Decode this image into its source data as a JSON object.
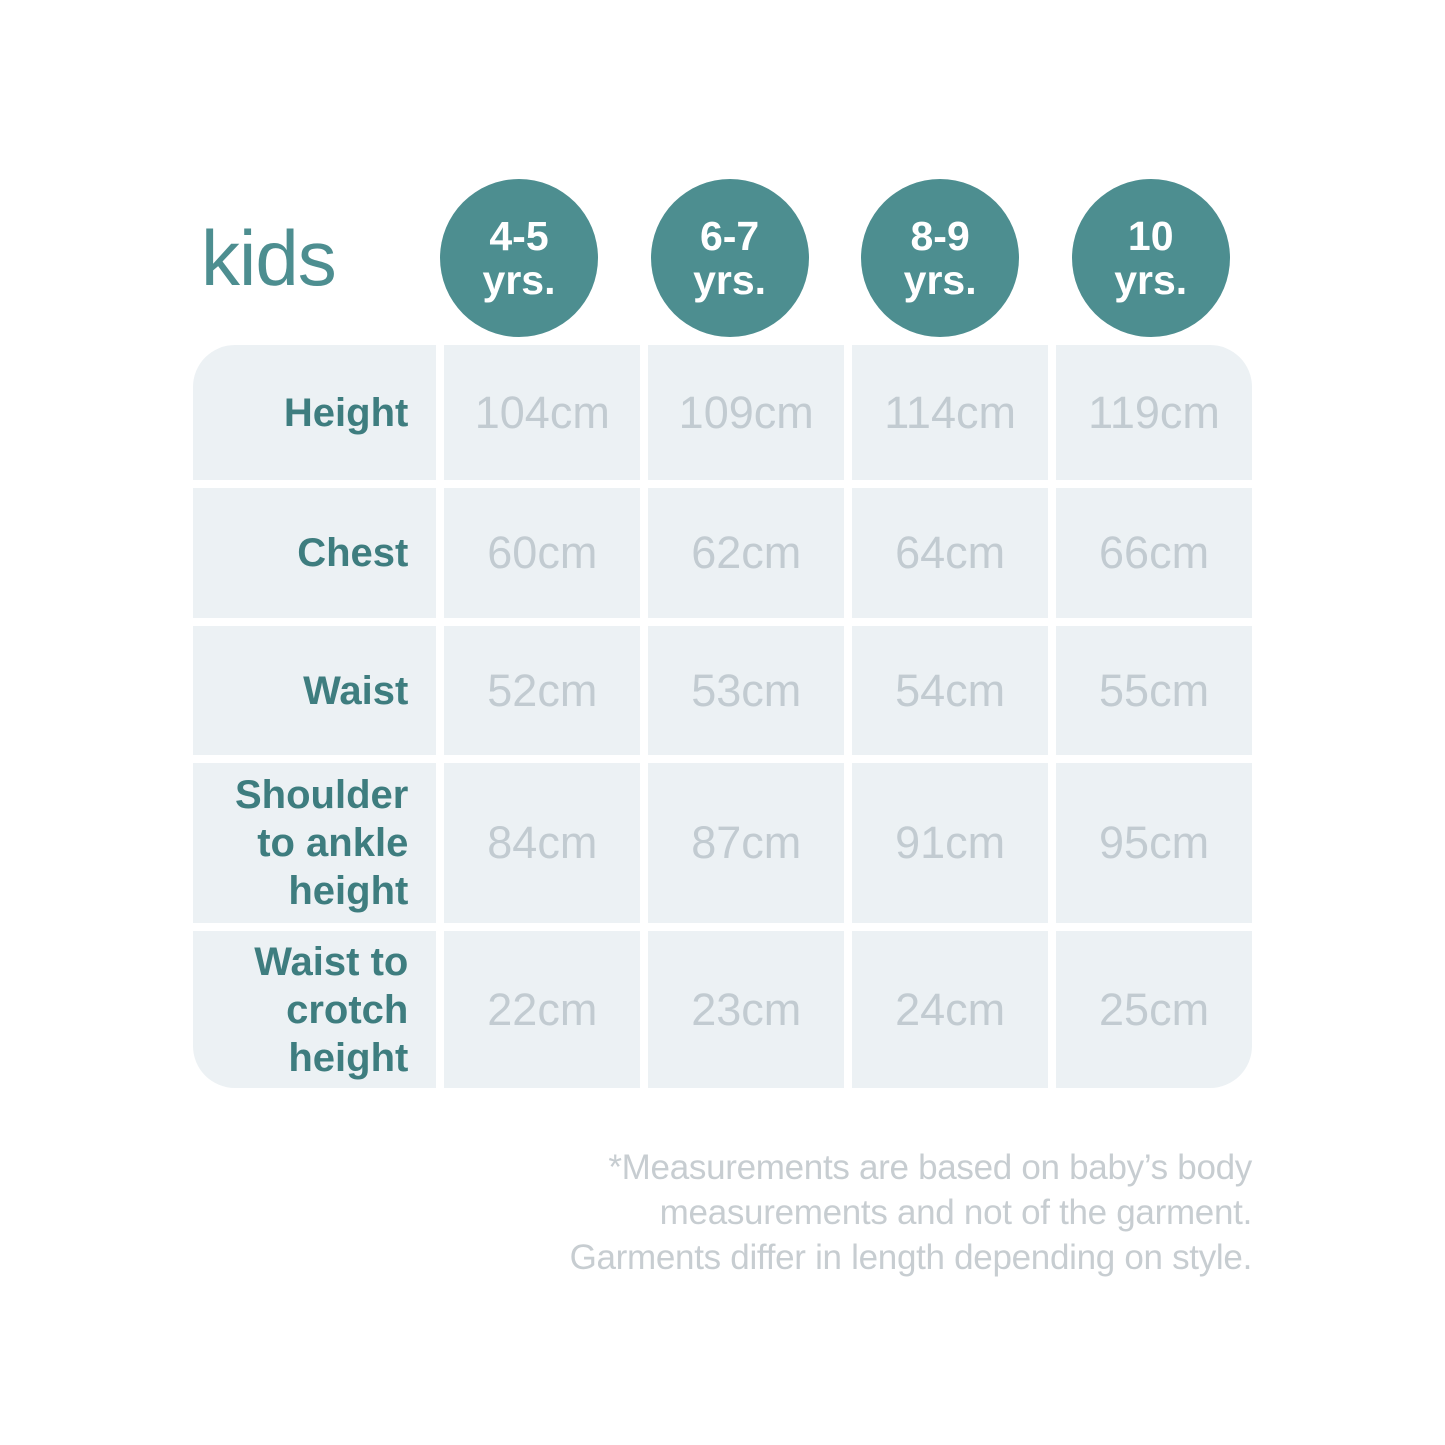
{
  "title": "kids",
  "accent_color": "#4D8E90",
  "label_color": "#3E7D7F",
  "value_color": "#C2CBD1",
  "table_bg": "#ECF1F4",
  "age_groups": [
    {
      "range": "4-5",
      "unit": "yrs."
    },
    {
      "range": "6-7",
      "unit": "yrs."
    },
    {
      "range": "8-9",
      "unit": "yrs."
    },
    {
      "range": "10",
      "unit": "yrs."
    }
  ],
  "rows": [
    {
      "label": "Height",
      "values": [
        "104cm",
        "109cm",
        "114cm",
        "119cm"
      ]
    },
    {
      "label": "Chest",
      "values": [
        "60cm",
        "62cm",
        "64cm",
        "66cm"
      ]
    },
    {
      "label": "Waist",
      "values": [
        "52cm",
        "53cm",
        "54cm",
        "55cm"
      ]
    },
    {
      "label": "Shoulder to ankle height",
      "values": [
        "84cm",
        "87cm",
        "91cm",
        "95cm"
      ]
    },
    {
      "label": "Waist to crotch height",
      "values": [
        "22cm",
        "23cm",
        "24cm",
        "25cm"
      ]
    }
  ],
  "footnote_lines": [
    "*Measurements are based on baby’s body",
    "measurements and not of the garment.",
    "Garments differ in length depending on style."
  ],
  "chart_data": {
    "type": "table",
    "title": "kids",
    "columns": [
      "",
      "4-5 yrs.",
      "6-7 yrs.",
      "8-9 yrs.",
      "10 yrs."
    ],
    "rows": [
      [
        "Height",
        "104cm",
        "109cm",
        "114cm",
        "119cm"
      ],
      [
        "Chest",
        "60cm",
        "62cm",
        "64cm",
        "66cm"
      ],
      [
        "Waist",
        "52cm",
        "53cm",
        "54cm",
        "55cm"
      ],
      [
        "Shoulder to ankle height",
        "84cm",
        "87cm",
        "91cm",
        "95cm"
      ],
      [
        "Waist to crotch height",
        "22cm",
        "23cm",
        "24cm",
        "25cm"
      ]
    ],
    "footnote": "*Measurements are based on baby’s body measurements and not of the garment. Garments differ in length depending on style."
  }
}
